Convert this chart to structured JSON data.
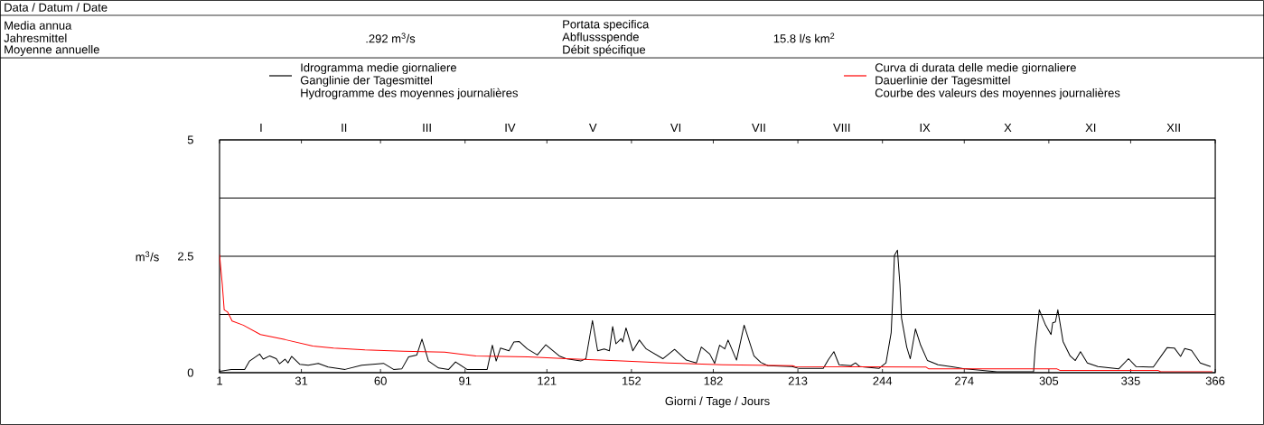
{
  "chart_data": {
    "type": "line",
    "xlabel": "Giorni / Tage / Jours",
    "ylabel": "m$^{3}$/s",
    "xlim": [
      1,
      366
    ],
    "xticks": [
      1,
      31,
      60,
      91,
      121,
      152,
      182,
      213,
      244,
      274,
      305,
      335,
      366
    ],
    "ylim": [
      0,
      5
    ],
    "yticks": [
      0,
      {
        "value": 1.25,
        "label": null
      },
      2.5,
      {
        "value": 3.75,
        "label": null
      },
      5
    ],
    "grid": "y",
    "legend": "top",
    "annotations": [
      "Data / Datum / Date",
      "Media annua",
      "Jahresmittel",
      "Moyenne annuelle",
      ".292 m$^{3}$/s",
      "Portata specifica",
      "Abflussspende",
      "Débit spécifique",
      "15.8 l/s km$^{2}$",
      "Ganglinie der Tagesmittel",
      "Hydrogramme des moyennes journalières",
      "Dauerlinie der Tagesmittel",
      "Courbe des valeurs des moyennes journalières",
      "I",
      "II",
      "III",
      "IV",
      "V",
      "VI",
      "VII",
      "VIII",
      "IX",
      "X",
      "XI",
      "XII"
    ],
    "series": [
      {
        "name": "Idrogramma medie giornaliere",
        "color": "#000000",
        "x": [
          1,
          5.3,
          10.2,
          12,
          15.7,
          17,
          19.4,
          21.8,
          23,
          25,
          26.1,
          27.4,
          30.4,
          33.5,
          37.2,
          40.8,
          47,
          53.1,
          61.1,
          64.8,
          67.8,
          70.3,
          73.3,
          75.2,
          77.6,
          81.3,
          85,
          87.5,
          91.7,
          99.1,
          101,
          102.4,
          104,
          107.1,
          108.9,
          110.8,
          113.8,
          117.5,
          120.6,
          125.5,
          128,
          133.4,
          135.3,
          137.7,
          139.6,
          142,
          143.9,
          145.1,
          146.3,
          148.2,
          148.8,
          150,
          152.5,
          154.9,
          157.4,
          163.5,
          167.8,
          172.1,
          175.8,
          177.6,
          180.7,
          182.5,
          184.3,
          186.2,
          187.4,
          190.5,
          193.3,
          196.9,
          199.4,
          202,
          210.9,
          213.4,
          222.3,
          224.2,
          226.2,
          228.1,
          232.5,
          234.1,
          235.7,
          242.7,
          245.3,
          247.2,
          247.8,
          248.4,
          249.5,
          250.4,
          251,
          252.9,
          254.2,
          256.1,
          258,
          260.5,
          264.4,
          270.1,
          274.5,
          286,
          299.4,
          300,
          301.5,
          303.8,
          305.8,
          306.4,
          307.4,
          308.3,
          310.2,
          312.8,
          314.7,
          316.6,
          319.1,
          323,
          330.6,
          334.2,
          337,
          343.3,
          348.4,
          351,
          353.3,
          354.8,
          357.3,
          360.5,
          364.3
        ],
        "values": [
          0.03,
          0.07,
          0.07,
          0.25,
          0.4,
          0.29,
          0.36,
          0.3,
          0.19,
          0.29,
          0.21,
          0.35,
          0.18,
          0.16,
          0.2,
          0.12,
          0.07,
          0.16,
          0.2,
          0.07,
          0.08,
          0.34,
          0.38,
          0.72,
          0.25,
          0.1,
          0.07,
          0.23,
          0.07,
          0.07,
          0.59,
          0.25,
          0.53,
          0.47,
          0.66,
          0.67,
          0.51,
          0.38,
          0.6,
          0.36,
          0.3,
          0.25,
          0.3,
          1.12,
          0.47,
          0.51,
          0.47,
          0.99,
          0.62,
          0.73,
          0.66,
          0.96,
          0.47,
          0.7,
          0.51,
          0.3,
          0.5,
          0.27,
          0.21,
          0.55,
          0.4,
          0.2,
          0.59,
          0.51,
          0.7,
          0.27,
          1.02,
          0.36,
          0.22,
          0.15,
          0.13,
          0.09,
          0.09,
          0.28,
          0.45,
          0.17,
          0.15,
          0.21,
          0.13,
          0.09,
          0.21,
          0.86,
          1.63,
          2.52,
          2.63,
          1.9,
          1.17,
          0.55,
          0.3,
          0.94,
          0.59,
          0.26,
          0.17,
          0.12,
          0.08,
          0.02,
          0.02,
          0.52,
          1.35,
          1.02,
          0.82,
          1.07,
          1.09,
          1.35,
          0.67,
          0.36,
          0.26,
          0.45,
          0.21,
          0.13,
          0.08,
          0.3,
          0.13,
          0.12,
          0.54,
          0.53,
          0.35,
          0.52,
          0.48,
          0.21,
          0.13
        ]
      },
      {
        "name": "Curva di durata delle medie giornaliere",
        "color": "#ff0000",
        "x": [
          1,
          2,
          2.7,
          4,
          5.6,
          9.7,
          16,
          25,
          35.2,
          42.8,
          54.3,
          68.3,
          83.5,
          95,
          114.1,
          128.1,
          148.5,
          165.1,
          185.4,
          211,
          212,
          260,
          261,
          308,
          309,
          345,
          346,
          365
        ],
        "values": [
          2.54,
          1.9,
          1.35,
          1.3,
          1.11,
          1.02,
          0.82,
          0.71,
          0.57,
          0.53,
          0.49,
          0.46,
          0.44,
          0.36,
          0.34,
          0.3,
          0.25,
          0.21,
          0.17,
          0.15,
          0.13,
          0.12,
          0.08,
          0.08,
          0.05,
          0.05,
          0.02,
          0.02
        ]
      }
    ]
  }
}
